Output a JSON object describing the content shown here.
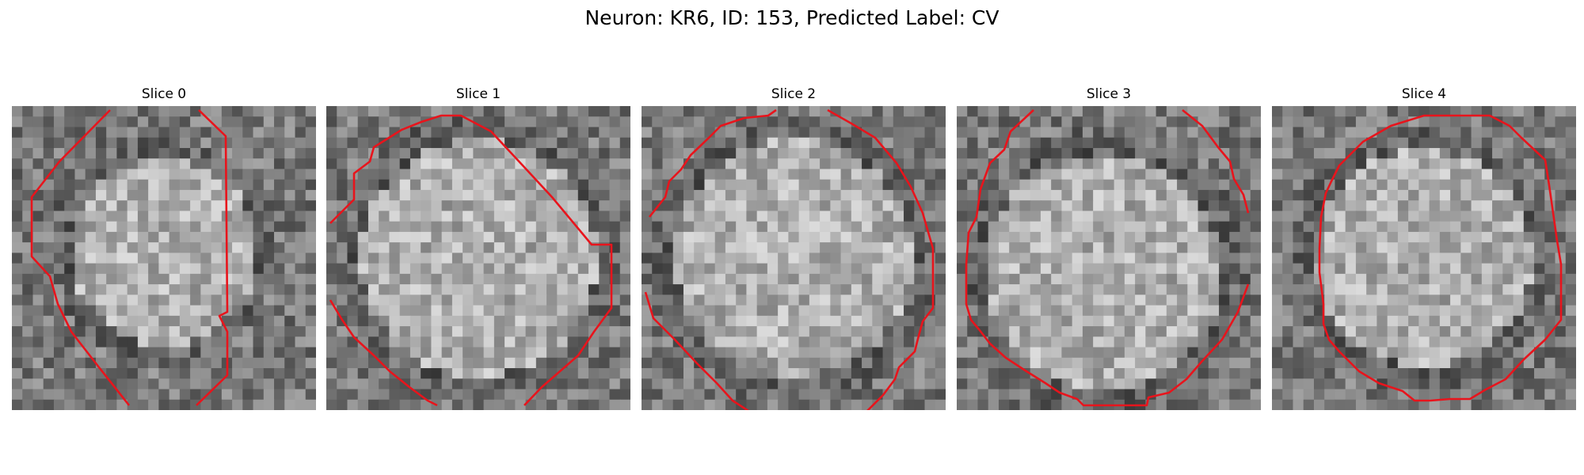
{
  "figure": {
    "title": "Neuron: KR6, ID: 153, Predicted Label: CV",
    "panels": [
      {
        "title": "Slice 0",
        "contour_color": "#e8141c",
        "image": "grayscale-patch"
      },
      {
        "title": "Slice 1",
        "contour_color": "#e8141c",
        "image": "grayscale-patch"
      },
      {
        "title": "Slice 2",
        "contour_color": "#e8141c",
        "image": "grayscale-patch"
      },
      {
        "title": "Slice 3",
        "contour_color": "#e8141c",
        "image": "grayscale-patch"
      },
      {
        "title": "Slice 4",
        "contour_color": "#e8141c",
        "image": "grayscale-patch"
      }
    ]
  }
}
